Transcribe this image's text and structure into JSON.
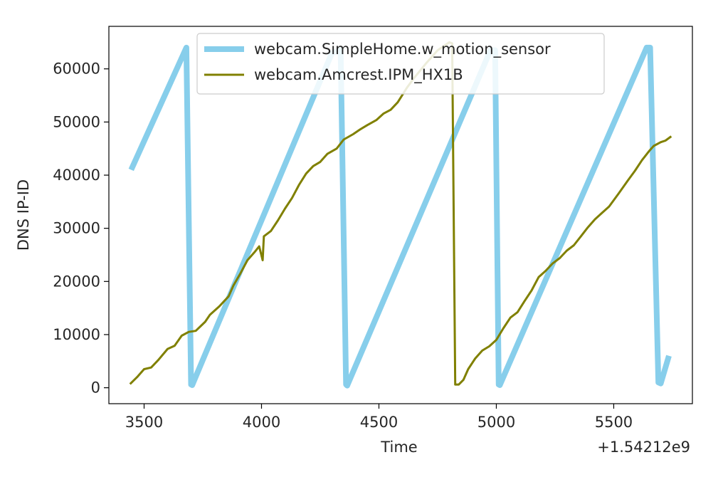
{
  "chart_data": {
    "type": "line",
    "title": "",
    "xlabel": "Time",
    "ylabel": "DNS IP-ID",
    "x_offset_label": "+1.54212e9",
    "xlim": [
      3350,
      5835
    ],
    "ylim": [
      -3000,
      68000
    ],
    "x_ticks": [
      3500,
      4000,
      4500,
      5000,
      5500
    ],
    "x_tick_labels": [
      "3500",
      "4000",
      "4500",
      "5000",
      "5500"
    ],
    "y_ticks": [
      0,
      10000,
      20000,
      30000,
      40000,
      50000,
      60000
    ],
    "y_tick_labels": [
      "0",
      "10000",
      "20000",
      "30000",
      "40000",
      "50000",
      "60000"
    ],
    "grid": false,
    "legend_position": "top-center",
    "series": [
      {
        "name": "webcam.SimpleHome.w_motion_sensor",
        "color": "#87ceeb",
        "points": [
          [
            3445,
            41000
          ],
          [
            3680,
            64000
          ],
          [
            3700,
            600
          ],
          [
            3705,
            500
          ],
          [
            4300,
            63000
          ],
          [
            4337,
            63500
          ],
          [
            4360,
            600
          ],
          [
            4365,
            400
          ],
          [
            4975,
            63500
          ],
          [
            4995,
            63500
          ],
          [
            5010,
            600
          ],
          [
            5015,
            500
          ],
          [
            5640,
            64000
          ],
          [
            5655,
            64000
          ],
          [
            5690,
            1000
          ],
          [
            5700,
            800
          ],
          [
            5735,
            6000
          ]
        ]
      },
      {
        "name": "webcam.Amcrest.IPM_HX1B",
        "color": "#808000",
        "points": [
          [
            3440,
            700
          ],
          [
            3470,
            2000
          ],
          [
            3500,
            3500
          ],
          [
            3530,
            3800
          ],
          [
            3560,
            5200
          ],
          [
            3600,
            7300
          ],
          [
            3630,
            7900
          ],
          [
            3660,
            9800
          ],
          [
            3690,
            10500
          ],
          [
            3720,
            10700
          ],
          [
            3760,
            12400
          ],
          [
            3780,
            13700
          ],
          [
            3820,
            15300
          ],
          [
            3860,
            17200
          ],
          [
            3880,
            19200
          ],
          [
            3910,
            21500
          ],
          [
            3940,
            24000
          ],
          [
            3970,
            25500
          ],
          [
            3990,
            26600
          ],
          [
            4005,
            24000
          ],
          [
            4010,
            28500
          ],
          [
            4040,
            29500
          ],
          [
            4070,
            31500
          ],
          [
            4100,
            33700
          ],
          [
            4130,
            35700
          ],
          [
            4160,
            38200
          ],
          [
            4190,
            40300
          ],
          [
            4220,
            41700
          ],
          [
            4250,
            42500
          ],
          [
            4280,
            44000
          ],
          [
            4320,
            45000
          ],
          [
            4350,
            46700
          ],
          [
            4390,
            47700
          ],
          [
            4420,
            48600
          ],
          [
            4450,
            49400
          ],
          [
            4490,
            50400
          ],
          [
            4520,
            51600
          ],
          [
            4550,
            52300
          ],
          [
            4580,
            53700
          ],
          [
            4620,
            56500
          ],
          [
            4650,
            58300
          ],
          [
            4700,
            61000
          ],
          [
            4750,
            63500
          ],
          [
            4800,
            65000
          ],
          [
            4812,
            64800
          ],
          [
            4825,
            600
          ],
          [
            4840,
            600
          ],
          [
            4860,
            1500
          ],
          [
            4880,
            3500
          ],
          [
            4910,
            5500
          ],
          [
            4940,
            7000
          ],
          [
            4970,
            7800
          ],
          [
            5000,
            9000
          ],
          [
            5030,
            11200
          ],
          [
            5060,
            13200
          ],
          [
            5090,
            14200
          ],
          [
            5120,
            16300
          ],
          [
            5150,
            18300
          ],
          [
            5180,
            20800
          ],
          [
            5210,
            22000
          ],
          [
            5240,
            23400
          ],
          [
            5270,
            24400
          ],
          [
            5300,
            25800
          ],
          [
            5330,
            26800
          ],
          [
            5360,
            28500
          ],
          [
            5390,
            30200
          ],
          [
            5420,
            31700
          ],
          [
            5450,
            32900
          ],
          [
            5480,
            34100
          ],
          [
            5520,
            36500
          ],
          [
            5560,
            39000
          ],
          [
            5590,
            40800
          ],
          [
            5620,
            42800
          ],
          [
            5650,
            44500
          ],
          [
            5670,
            45500
          ],
          [
            5700,
            46200
          ],
          [
            5720,
            46500
          ],
          [
            5745,
            47300
          ]
        ]
      }
    ]
  }
}
